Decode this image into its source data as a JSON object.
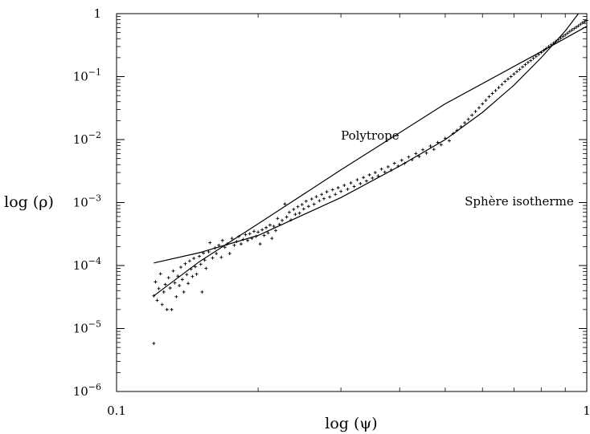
{
  "chart_data": {
    "type": "scatter",
    "xscale": "log",
    "yscale": "log",
    "xlim": [
      0.1,
      1
    ],
    "ylim": [
      1e-06,
      1
    ],
    "xlabel": "log (ψ)",
    "ylabel": "log (ρ)",
    "xticks": [
      {
        "value": 0.1,
        "label": "0.1"
      },
      {
        "value": 1,
        "label": "1"
      }
    ],
    "yticks": [
      {
        "value": 1e-06,
        "base": "10",
        "exp": "−6"
      },
      {
        "value": 1e-05,
        "base": "10",
        "exp": "−5"
      },
      {
        "value": 0.0001,
        "base": "10",
        "exp": "−4"
      },
      {
        "value": 0.001,
        "base": "10",
        "exp": "−3"
      },
      {
        "value": 0.01,
        "base": "10",
        "exp": "−2"
      },
      {
        "value": 0.1,
        "base": "10",
        "exp": "−1"
      },
      {
        "value": 1,
        "base": "1",
        "exp": ""
      }
    ],
    "series": [
      {
        "name": "Polytrope",
        "kind": "curve",
        "x": [
          0.12,
          0.15,
          0.2,
          0.3,
          0.5,
          0.8,
          1.0
        ],
        "y": [
          3.3e-05,
          0.000115,
          0.00046,
          0.0033,
          0.037,
          0.25,
          0.63
        ]
      },
      {
        "name": "Sphère isotherme",
        "kind": "curve",
        "x": [
          0.12,
          0.15,
          0.2,
          0.3,
          0.4,
          0.5,
          0.6,
          0.7,
          0.8,
          0.9,
          0.96
        ],
        "y": [
          0.00011,
          0.00016,
          0.0003,
          0.0012,
          0.0038,
          0.01,
          0.027,
          0.073,
          0.2,
          0.53,
          1.0
        ]
      },
      {
        "name": "",
        "kind": "points",
        "marker": "+",
        "points": [
          [
            0.12,
            5.8e-06
          ],
          [
            0.12,
            3.3e-05
          ],
          [
            0.121,
            5.5e-05
          ],
          [
            0.122,
            2.8e-05
          ],
          [
            0.123,
            4.3e-05
          ],
          [
            0.124,
            7.4e-05
          ],
          [
            0.125,
            2.4e-05
          ],
          [
            0.126,
            3.8e-05
          ],
          [
            0.127,
            5e-05
          ],
          [
            0.128,
            2e-05
          ],
          [
            0.129,
            6.4e-05
          ],
          [
            0.13,
            4.4e-05
          ],
          [
            0.131,
            2e-05
          ],
          [
            0.132,
            8.2e-05
          ],
          [
            0.133,
            5.3e-05
          ],
          [
            0.134,
            3.2e-05
          ],
          [
            0.135,
            6.8e-05
          ],
          [
            0.136,
            4.8e-05
          ],
          [
            0.137,
            9.4e-05
          ],
          [
            0.138,
            6e-05
          ],
          [
            0.139,
            3.8e-05
          ],
          [
            0.14,
            0.000107
          ],
          [
            0.141,
            7.2e-05
          ],
          [
            0.142,
            5.2e-05
          ],
          [
            0.143,
            0.000118
          ],
          [
            0.144,
            8.8e-05
          ],
          [
            0.145,
            6.7e-05
          ],
          [
            0.146,
            0.00013
          ],
          [
            0.147,
            9.6e-05
          ],
          [
            0.148,
            7.3e-05
          ],
          [
            0.15,
            0.00014
          ],
          [
            0.151,
            0.000105
          ],
          [
            0.152,
            3.8e-05
          ],
          [
            0.153,
            0.000158
          ],
          [
            0.154,
            0.000122
          ],
          [
            0.155,
            9e-05
          ],
          [
            0.157,
            0.000165
          ],
          [
            0.158,
            0.00023
          ],
          [
            0.16,
            0.000132
          ],
          [
            0.162,
            0.00019
          ],
          [
            0.163,
            0.000155
          ],
          [
            0.165,
            0.00021
          ],
          [
            0.167,
            0.000135
          ],
          [
            0.168,
            0.00025
          ],
          [
            0.17,
            0.000195
          ],
          [
            0.172,
            0.00022
          ],
          [
            0.174,
            0.000155
          ],
          [
            0.176,
            0.00027
          ],
          [
            0.178,
            0.00021
          ],
          [
            0.18,
            0.00024
          ],
          [
            0.182,
            0.00029
          ],
          [
            0.184,
            0.00022
          ],
          [
            0.186,
            0.00026
          ],
          [
            0.188,
            0.00031
          ],
          [
            0.19,
            0.00025
          ],
          [
            0.192,
            0.00032
          ],
          [
            0.194,
            0.00027
          ],
          [
            0.196,
            0.00035
          ],
          [
            0.198,
            0.00029
          ],
          [
            0.2,
            0.00034
          ],
          [
            0.202,
            0.00022
          ],
          [
            0.204,
            0.00037
          ],
          [
            0.206,
            0.0003
          ],
          [
            0.208,
            0.0004
          ],
          [
            0.21,
            0.00033
          ],
          [
            0.212,
            0.00044
          ],
          [
            0.214,
            0.00027
          ],
          [
            0.216,
            0.00042
          ],
          [
            0.218,
            0.00036
          ],
          [
            0.22,
            0.00056
          ],
          [
            0.222,
            0.00045
          ],
          [
            0.225,
            0.00052
          ],
          [
            0.228,
            0.00095
          ],
          [
            0.23,
            0.00059
          ],
          [
            0.233,
            0.0007
          ],
          [
            0.235,
            0.00053
          ],
          [
            0.238,
            0.00078
          ],
          [
            0.24,
            0.00065
          ],
          [
            0.243,
            0.00086
          ],
          [
            0.245,
            0.00068
          ],
          [
            0.248,
            0.00093
          ],
          [
            0.25,
            0.00079
          ],
          [
            0.253,
            0.00105
          ],
          [
            0.256,
            0.00087
          ],
          [
            0.26,
            0.00114
          ],
          [
            0.263,
            0.00094
          ],
          [
            0.266,
            0.00124
          ],
          [
            0.27,
            0.00107
          ],
          [
            0.273,
            0.00135
          ],
          [
            0.276,
            0.00115
          ],
          [
            0.28,
            0.00148
          ],
          [
            0.284,
            0.00123
          ],
          [
            0.288,
            0.0016
          ],
          [
            0.292,
            0.00135
          ],
          [
            0.296,
            0.00172
          ],
          [
            0.3,
            0.0015
          ],
          [
            0.305,
            0.00188
          ],
          [
            0.31,
            0.00163
          ],
          [
            0.315,
            0.00205
          ],
          [
            0.32,
            0.0018
          ],
          [
            0.325,
            0.0023
          ],
          [
            0.33,
            0.002
          ],
          [
            0.335,
            0.0025
          ],
          [
            0.34,
            0.0022
          ],
          [
            0.345,
            0.00275
          ],
          [
            0.35,
            0.00245
          ],
          [
            0.355,
            0.003
          ],
          [
            0.36,
            0.00265
          ],
          [
            0.366,
            0.0034
          ],
          [
            0.372,
            0.00305
          ],
          [
            0.378,
            0.0037
          ],
          [
            0.384,
            0.0033
          ],
          [
            0.39,
            0.0042
          ],
          [
            0.397,
            0.0038
          ],
          [
            0.404,
            0.0047
          ],
          [
            0.41,
            0.0042
          ],
          [
            0.418,
            0.0053
          ],
          [
            0.425,
            0.0048
          ],
          [
            0.433,
            0.006
          ],
          [
            0.44,
            0.0054
          ],
          [
            0.448,
            0.0069
          ],
          [
            0.456,
            0.0061
          ],
          [
            0.465,
            0.0079
          ],
          [
            0.473,
            0.007
          ],
          [
            0.482,
            0.009
          ],
          [
            0.49,
            0.0083
          ],
          [
            0.5,
            0.0105
          ],
          [
            0.51,
            0.0096
          ],
          [
            0.52,
            0.0125
          ],
          [
            0.53,
            0.014
          ],
          [
            0.54,
            0.016
          ],
          [
            0.55,
            0.0185
          ],
          [
            0.56,
            0.021
          ],
          [
            0.57,
            0.0245
          ],
          [
            0.58,
            0.028
          ],
          [
            0.59,
            0.032
          ],
          [
            0.6,
            0.037
          ],
          [
            0.61,
            0.042
          ],
          [
            0.62,
            0.048
          ],
          [
            0.63,
            0.054
          ],
          [
            0.64,
            0.06
          ],
          [
            0.65,
            0.067
          ],
          [
            0.66,
            0.075
          ],
          [
            0.67,
            0.084
          ],
          [
            0.68,
            0.092
          ],
          [
            0.69,
            0.1
          ],
          [
            0.7,
            0.11
          ],
          [
            0.71,
            0.12
          ],
          [
            0.72,
            0.13
          ],
          [
            0.73,
            0.142
          ],
          [
            0.74,
            0.155
          ],
          [
            0.75,
            0.168
          ],
          [
            0.76,
            0.18
          ],
          [
            0.77,
            0.195
          ],
          [
            0.78,
            0.21
          ],
          [
            0.79,
            0.225
          ],
          [
            0.8,
            0.242
          ],
          [
            0.81,
            0.26
          ],
          [
            0.82,
            0.28
          ],
          [
            0.83,
            0.3
          ],
          [
            0.84,
            0.32
          ],
          [
            0.85,
            0.34
          ],
          [
            0.86,
            0.362
          ],
          [
            0.87,
            0.385
          ],
          [
            0.88,
            0.41
          ],
          [
            0.89,
            0.435
          ],
          [
            0.9,
            0.46
          ],
          [
            0.91,
            0.49
          ],
          [
            0.92,
            0.52
          ],
          [
            0.93,
            0.55
          ],
          [
            0.94,
            0.58
          ],
          [
            0.95,
            0.61
          ],
          [
            0.96,
            0.64
          ],
          [
            0.97,
            0.68
          ],
          [
            0.98,
            0.72
          ],
          [
            0.99,
            0.75
          ],
          [
            1.0,
            0.78
          ]
        ]
      }
    ],
    "annotations": [
      {
        "text": "Polytrope",
        "x": 0.3,
        "y": 0.01
      },
      {
        "text": "Sphère isotherme",
        "x": 0.55,
        "y": 0.0009
      }
    ],
    "grid": false,
    "legend": "none"
  }
}
